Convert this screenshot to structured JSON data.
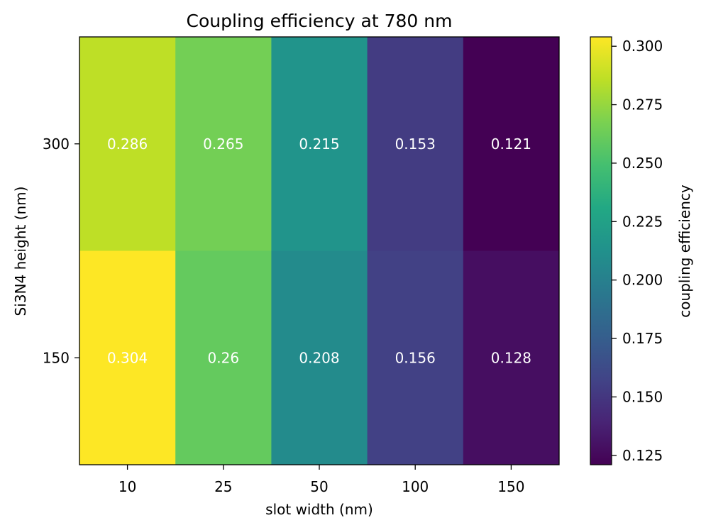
{
  "chart_data": {
    "type": "heatmap",
    "title": "Coupling efficiency at 780 nm",
    "xlabel": "slot width (nm)",
    "ylabel": "Si3N4 height (nm)",
    "x_categories": [
      "10",
      "25",
      "50",
      "100",
      "150"
    ],
    "y_categories": [
      "300",
      "150"
    ],
    "values": [
      [
        0.286,
        0.265,
        0.215,
        0.153,
        0.121
      ],
      [
        0.304,
        0.26,
        0.208,
        0.156,
        0.128
      ]
    ],
    "value_labels": [
      [
        "0.286",
        "0.265",
        "0.215",
        "0.153",
        "0.121"
      ],
      [
        "0.304",
        "0.26",
        "0.208",
        "0.156",
        "0.128"
      ]
    ],
    "colormap": "viridis",
    "colorbar": {
      "label": "coupling efficiency",
      "range": [
        0.121,
        0.304
      ],
      "ticks": [
        0.125,
        0.15,
        0.175,
        0.2,
        0.225,
        0.25,
        0.275,
        0.3
      ],
      "tick_labels": [
        "0.125",
        "0.150",
        "0.175",
        "0.200",
        "0.225",
        "0.250",
        "0.275",
        "0.300"
      ]
    },
    "annotation_color": "#ffffff"
  }
}
